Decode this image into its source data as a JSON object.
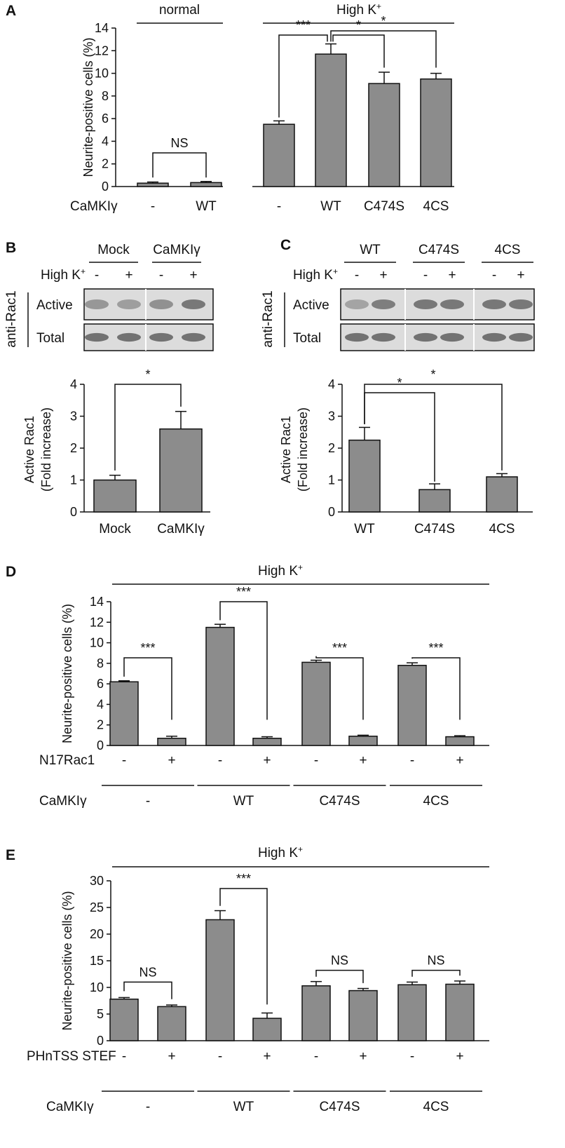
{
  "colors": {
    "bar": "#8c8c8c",
    "ink": "#111111",
    "blot_bg": "#dcdcdc",
    "band": "#5f5f5f"
  },
  "panels": {
    "A": "A",
    "B": "B",
    "C": "C",
    "D": "D",
    "E": "E"
  },
  "chart_data": [
    {
      "id": "A",
      "type": "bar",
      "ylabel": "Neurite-positive cells (%)",
      "ylim": [
        0,
        14
      ],
      "yticks": [
        0,
        2,
        4,
        6,
        8,
        10,
        12,
        14
      ],
      "groups": [
        {
          "label": "normal",
          "categories": [
            "-",
            "WT"
          ],
          "values": [
            0.3,
            0.35
          ],
          "errors": [
            0.1,
            0.1
          ]
        },
        {
          "label": "High K+",
          "categories": [
            "-",
            "WT",
            "C474S",
            "4CS"
          ],
          "values": [
            5.5,
            11.7,
            9.1,
            9.5
          ],
          "errors": [
            0.3,
            0.9,
            1.0,
            0.5
          ]
        }
      ],
      "row_label": "CaMKIγ",
      "significance": [
        "NS",
        "***",
        "*",
        "*"
      ]
    },
    {
      "id": "B",
      "type": "bar",
      "ylabel": "Active Rac1 (Fold increase)",
      "ylabel_lines": [
        "Active Rac1",
        "(Fold increase)"
      ],
      "ylim": [
        0,
        4
      ],
      "yticks": [
        0,
        1,
        2,
        3,
        4
      ],
      "categories": [
        "Mock",
        "CaMKIγ"
      ],
      "values": [
        1.0,
        2.6
      ],
      "errors": [
        0.15,
        0.55
      ],
      "significance": [
        "*"
      ],
      "blot": {
        "groups": [
          "Mock",
          "CaMKIγ"
        ],
        "row_label": "High K⁺",
        "signs": [
          "-",
          "+",
          "-",
          "+"
        ],
        "side_label": "anti-Rac1",
        "rows": [
          "Active",
          "Total"
        ]
      }
    },
    {
      "id": "C",
      "type": "bar",
      "ylabel": "Active Rac1 (Fold increase)",
      "ylabel_lines": [
        "Active Rac1",
        "(Fold increase)"
      ],
      "ylim": [
        0,
        4
      ],
      "yticks": [
        0,
        1,
        2,
        3,
        4
      ],
      "categories": [
        "WT",
        "C474S",
        "4CS"
      ],
      "values": [
        2.25,
        0.7,
        1.1
      ],
      "errors": [
        0.4,
        0.18,
        0.1
      ],
      "significance": [
        "*",
        "*"
      ],
      "blot": {
        "groups": [
          "WT",
          "C474S",
          "4CS"
        ],
        "row_label": "High K⁺",
        "signs": [
          "-",
          "+",
          "-",
          "+",
          "-",
          "+"
        ],
        "side_label": "anti-Rac1",
        "rows": [
          "Active",
          "Total"
        ]
      }
    },
    {
      "id": "D",
      "type": "bar",
      "title": "High K⁺",
      "ylabel": "Neurite-positive cells (%)",
      "ylim": [
        0,
        14
      ],
      "yticks": [
        0,
        2,
        4,
        6,
        8,
        10,
        12,
        14
      ],
      "row1_label": "N17Rac1",
      "row2_label": "CaMKIγ",
      "signs": [
        "-",
        "+",
        "-",
        "+",
        "-",
        "+",
        "-",
        "+"
      ],
      "groups": [
        "-",
        "WT",
        "C474S",
        "4CS"
      ],
      "values": [
        6.2,
        0.7,
        11.5,
        0.7,
        8.1,
        0.9,
        7.8,
        0.85
      ],
      "errors": [
        0.1,
        0.2,
        0.3,
        0.15,
        0.2,
        0.1,
        0.25,
        0.1
      ],
      "significance": [
        "***",
        "***",
        "***",
        "***"
      ]
    },
    {
      "id": "E",
      "type": "bar",
      "title": "High K⁺",
      "ylabel": "Neurite-positive cells (%)",
      "ylim": [
        0,
        30
      ],
      "yticks": [
        0,
        5,
        10,
        15,
        20,
        25,
        30
      ],
      "row1_label": "PHnTSS STEF",
      "row2_label": "CaMKIγ",
      "signs": [
        "-",
        "+",
        "-",
        "+",
        "-",
        "+",
        "-",
        "+"
      ],
      "groups": [
        "-",
        "WT",
        "C474S",
        "4CS"
      ],
      "values": [
        7.8,
        6.4,
        22.7,
        4.2,
        10.3,
        9.4,
        10.5,
        10.6
      ],
      "errors": [
        0.3,
        0.3,
        1.7,
        1.0,
        0.8,
        0.4,
        0.5,
        0.6
      ],
      "significance": [
        "NS",
        "***",
        "NS",
        "NS"
      ]
    }
  ]
}
